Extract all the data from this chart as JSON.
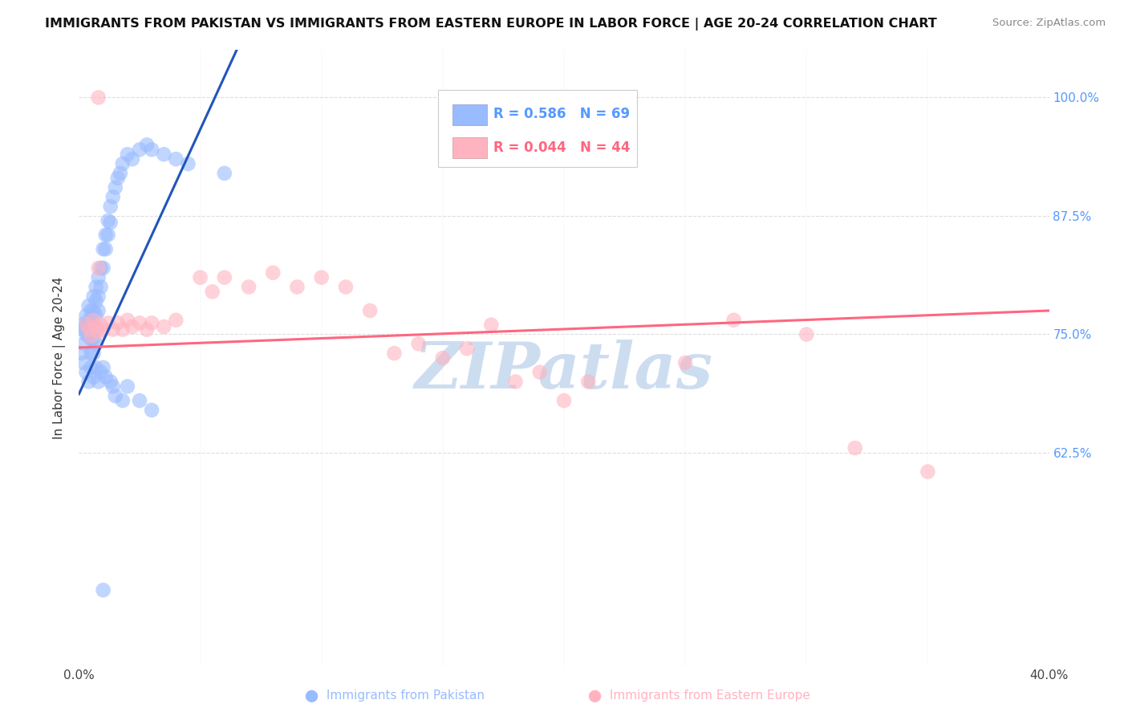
{
  "title": "IMMIGRANTS FROM PAKISTAN VS IMMIGRANTS FROM EASTERN EUROPE IN LABOR FORCE | AGE 20-24 CORRELATION CHART",
  "source": "Source: ZipAtlas.com",
  "ylabel": "In Labor Force | Age 20-24",
  "xlim": [
    0.0,
    0.4
  ],
  "ylim": [
    0.4,
    1.05
  ],
  "xtick_positions": [
    0.0,
    0.05,
    0.1,
    0.15,
    0.2,
    0.25,
    0.3,
    0.35,
    0.4
  ],
  "ytick_positions": [
    0.625,
    0.75,
    0.875,
    1.0
  ],
  "yticklabels": [
    "62.5%",
    "75.0%",
    "87.5%",
    "100.0%"
  ],
  "legend_r_blue": "0.586",
  "legend_n_blue": "69",
  "legend_r_pink": "0.044",
  "legend_n_pink": "44",
  "blue_fill": "#99BBFF",
  "pink_fill": "#FFB3C1",
  "line_blue_color": "#2255BB",
  "line_pink_color": "#FF6680",
  "tick_color": "#5599FF",
  "watermark_text": "ZIPatlas",
  "watermark_color": "#C5D8EE",
  "bg_color": "#FFFFFF",
  "grid_color": "#DDDDDD",
  "blue_pts": [
    [
      0.001,
      0.76
    ],
    [
      0.002,
      0.755
    ],
    [
      0.002,
      0.74
    ],
    [
      0.003,
      0.77
    ],
    [
      0.003,
      0.76
    ],
    [
      0.003,
      0.75
    ],
    [
      0.004,
      0.78
    ],
    [
      0.004,
      0.765
    ],
    [
      0.004,
      0.75
    ],
    [
      0.005,
      0.775
    ],
    [
      0.005,
      0.76
    ],
    [
      0.005,
      0.745
    ],
    [
      0.005,
      0.73
    ],
    [
      0.006,
      0.79
    ],
    [
      0.006,
      0.775
    ],
    [
      0.006,
      0.76
    ],
    [
      0.006,
      0.745
    ],
    [
      0.006,
      0.73
    ],
    [
      0.007,
      0.8
    ],
    [
      0.007,
      0.785
    ],
    [
      0.007,
      0.77
    ],
    [
      0.007,
      0.755
    ],
    [
      0.007,
      0.74
    ],
    [
      0.008,
      0.81
    ],
    [
      0.008,
      0.79
    ],
    [
      0.008,
      0.775
    ],
    [
      0.009,
      0.82
    ],
    [
      0.009,
      0.8
    ],
    [
      0.01,
      0.84
    ],
    [
      0.01,
      0.82
    ],
    [
      0.011,
      0.855
    ],
    [
      0.011,
      0.84
    ],
    [
      0.012,
      0.87
    ],
    [
      0.012,
      0.855
    ],
    [
      0.013,
      0.885
    ],
    [
      0.013,
      0.868
    ],
    [
      0.014,
      0.895
    ],
    [
      0.015,
      0.905
    ],
    [
      0.016,
      0.915
    ],
    [
      0.017,
      0.92
    ],
    [
      0.018,
      0.93
    ],
    [
      0.02,
      0.94
    ],
    [
      0.022,
      0.935
    ],
    [
      0.025,
      0.945
    ],
    [
      0.028,
      0.95
    ],
    [
      0.03,
      0.945
    ],
    [
      0.035,
      0.94
    ],
    [
      0.04,
      0.935
    ],
    [
      0.045,
      0.93
    ],
    [
      0.06,
      0.92
    ],
    [
      0.001,
      0.73
    ],
    [
      0.002,
      0.72
    ],
    [
      0.003,
      0.71
    ],
    [
      0.004,
      0.7
    ],
    [
      0.005,
      0.715
    ],
    [
      0.006,
      0.705
    ],
    [
      0.007,
      0.715
    ],
    [
      0.008,
      0.7
    ],
    [
      0.009,
      0.71
    ],
    [
      0.01,
      0.715
    ],
    [
      0.011,
      0.705
    ],
    [
      0.013,
      0.7
    ],
    [
      0.014,
      0.695
    ],
    [
      0.015,
      0.685
    ],
    [
      0.018,
      0.68
    ],
    [
      0.02,
      0.695
    ],
    [
      0.025,
      0.68
    ],
    [
      0.03,
      0.67
    ],
    [
      0.01,
      0.48
    ]
  ],
  "pink_pts": [
    [
      0.003,
      0.76
    ],
    [
      0.004,
      0.755
    ],
    [
      0.005,
      0.748
    ],
    [
      0.006,
      0.765
    ],
    [
      0.007,
      0.758
    ],
    [
      0.008,
      0.752
    ],
    [
      0.009,
      0.76
    ],
    [
      0.01,
      0.755
    ],
    [
      0.012,
      0.762
    ],
    [
      0.014,
      0.755
    ],
    [
      0.016,
      0.762
    ],
    [
      0.018,
      0.755
    ],
    [
      0.02,
      0.765
    ],
    [
      0.022,
      0.758
    ],
    [
      0.025,
      0.762
    ],
    [
      0.028,
      0.755
    ],
    [
      0.03,
      0.762
    ],
    [
      0.035,
      0.758
    ],
    [
      0.04,
      0.765
    ],
    [
      0.008,
      0.82
    ],
    [
      0.05,
      0.81
    ],
    [
      0.055,
      0.795
    ],
    [
      0.06,
      0.81
    ],
    [
      0.07,
      0.8
    ],
    [
      0.08,
      0.815
    ],
    [
      0.09,
      0.8
    ],
    [
      0.1,
      0.81
    ],
    [
      0.11,
      0.8
    ],
    [
      0.12,
      0.775
    ],
    [
      0.13,
      0.73
    ],
    [
      0.14,
      0.74
    ],
    [
      0.15,
      0.725
    ],
    [
      0.16,
      0.735
    ],
    [
      0.17,
      0.76
    ],
    [
      0.18,
      0.7
    ],
    [
      0.19,
      0.71
    ],
    [
      0.2,
      0.68
    ],
    [
      0.21,
      0.7
    ],
    [
      0.25,
      0.72
    ],
    [
      0.27,
      0.765
    ],
    [
      0.3,
      0.75
    ],
    [
      0.32,
      0.63
    ],
    [
      0.35,
      0.605
    ],
    [
      0.008,
      1.0
    ]
  ],
  "blue_line_x": [
    0.0,
    0.065
  ],
  "blue_line_y": [
    0.687,
    1.05
  ],
  "pink_line_x": [
    0.0,
    0.4
  ],
  "pink_line_y": [
    0.736,
    0.775
  ]
}
